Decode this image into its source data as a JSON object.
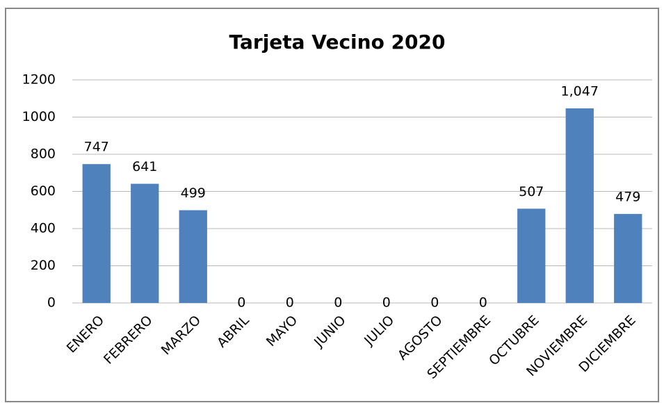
{
  "chart_data": {
    "type": "bar",
    "title": "Tarjeta Vecino 2020",
    "categories": [
      "ENERO",
      "FEBRERO",
      "MARZO",
      "ABRIL",
      "MAYO",
      "JUNIO",
      "JULIO",
      "AGOSTO",
      "SEPTIEMBRE",
      "OCTUBRE",
      "NOVIEMBRE",
      "DICIEMBRE"
    ],
    "values": [
      747,
      641,
      499,
      0,
      0,
      0,
      0,
      0,
      0,
      507,
      1047,
      479
    ],
    "value_labels": [
      "747",
      "641",
      "499",
      "0",
      "0",
      "0",
      "0",
      "0",
      "0",
      "507",
      "1,047",
      "479"
    ],
    "color": "#4f81bd",
    "ylim": [
      0,
      1200
    ],
    "yticks": [
      0,
      200,
      400,
      600,
      800,
      1000,
      1200
    ],
    "grid": true
  }
}
